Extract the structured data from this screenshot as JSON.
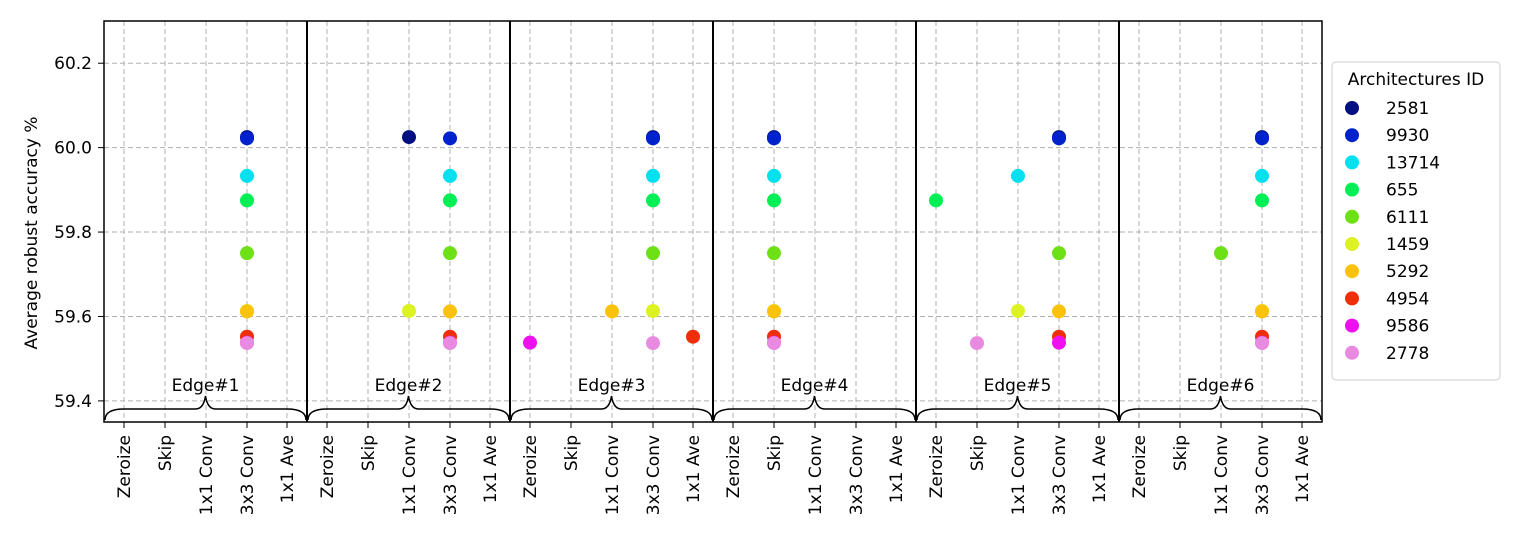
{
  "chart_data": {
    "type": "scatter",
    "ylabel": "Average robust accuracy %",
    "ylim": [
      59.35,
      60.3
    ],
    "yticks": [
      59.4,
      59.6,
      59.8,
      60.0,
      60.2
    ],
    "ytick_labels": [
      "59.4",
      "59.6",
      "59.8",
      "60.0",
      "60.2"
    ],
    "grid": true,
    "operations": [
      "Zeroize",
      "Skip",
      "1x1 Conv",
      "3x3 Conv",
      "1x1 Ave"
    ],
    "edges": [
      "Edge#1",
      "Edge#2",
      "Edge#3",
      "Edge#4",
      "Edge#5",
      "Edge#6"
    ],
    "legend": {
      "title": "Architectures ID",
      "placement": "outside-right"
    },
    "series": [
      {
        "name": "2581",
        "color": "#000f80",
        "accuracy": 60.025,
        "ops": [
          "3x3 Conv",
          "1x1 Conv",
          "3x3 Conv",
          "Skip",
          "3x3 Conv",
          "3x3 Conv"
        ]
      },
      {
        "name": "9930",
        "color": "#0022cc",
        "accuracy": 60.022,
        "ops": [
          "3x3 Conv",
          "3x3 Conv",
          "3x3 Conv",
          "Skip",
          "3x3 Conv",
          "3x3 Conv"
        ]
      },
      {
        "name": "13714",
        "color": "#00e0ef",
        "accuracy": 59.933,
        "ops": [
          "3x3 Conv",
          "3x3 Conv",
          "3x3 Conv",
          "Skip",
          "1x1 Conv",
          "3x3 Conv"
        ]
      },
      {
        "name": "655",
        "color": "#00ef55",
        "accuracy": 59.875,
        "ops": [
          "3x3 Conv",
          "3x3 Conv",
          "3x3 Conv",
          "Skip",
          "Zeroize",
          "3x3 Conv"
        ]
      },
      {
        "name": "6111",
        "color": "#6ee016",
        "accuracy": 59.75,
        "ops": [
          "3x3 Conv",
          "3x3 Conv",
          "3x3 Conv",
          "Skip",
          "3x3 Conv",
          "1x1 Conv"
        ]
      },
      {
        "name": "1459",
        "color": "#ddf222",
        "accuracy": 59.613,
        "ops": [
          "3x3 Conv",
          "1x1 Conv",
          "3x3 Conv",
          "Skip",
          "1x1 Conv",
          "3x3 Conv"
        ]
      },
      {
        "name": "5292",
        "color": "#fbc20b",
        "accuracy": 59.612,
        "ops": [
          "3x3 Conv",
          "3x3 Conv",
          "1x1 Conv",
          "Skip",
          "3x3 Conv",
          "3x3 Conv"
        ]
      },
      {
        "name": "4954",
        "color": "#f02f0a",
        "accuracy": 59.552,
        "ops": [
          "3x3 Conv",
          "3x3 Conv",
          "1x1 Ave",
          "Skip",
          "3x3 Conv",
          "3x3 Conv"
        ]
      },
      {
        "name": "9586",
        "color": "#ee10ee",
        "accuracy": 59.538,
        "ops": [
          "3x3 Conv",
          "3x3 Conv",
          "Zeroize",
          "Skip",
          "3x3 Conv",
          "3x3 Conv"
        ]
      },
      {
        "name": "2778",
        "color": "#e88ae0",
        "accuracy": 59.537,
        "ops": [
          "3x3 Conv",
          "3x3 Conv",
          "3x3 Conv",
          "Skip",
          "Skip",
          "3x3 Conv"
        ]
      }
    ]
  }
}
